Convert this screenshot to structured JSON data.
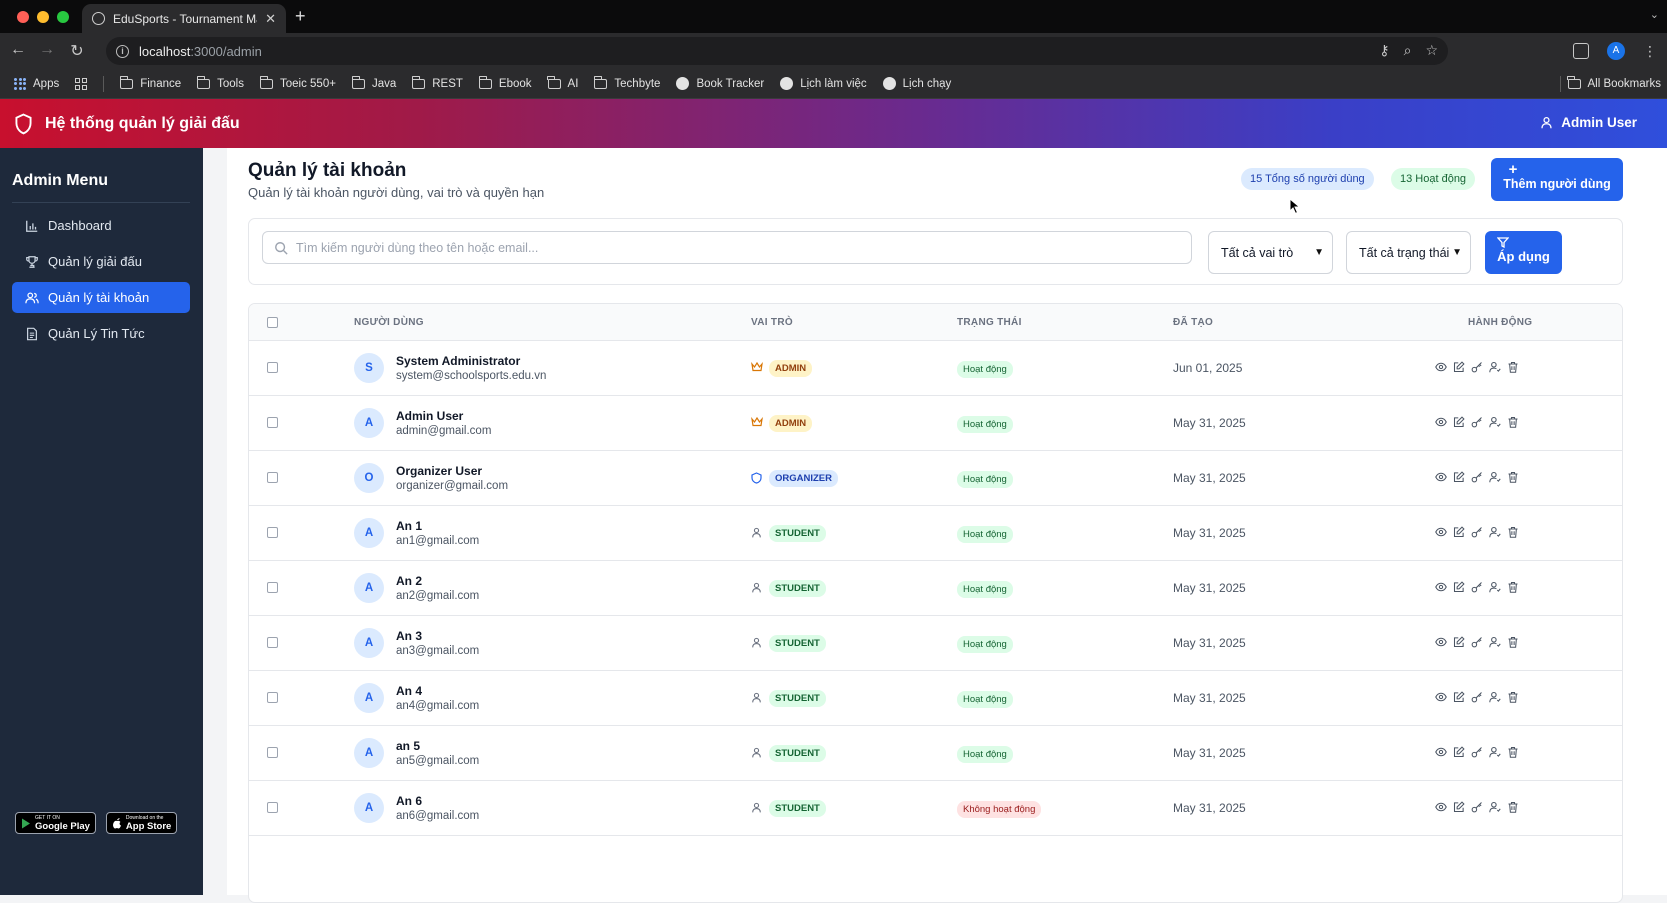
{
  "browser": {
    "tab_title": "EduSports - Tournament Man",
    "url_host": "localhost",
    "url_path": ":3000/admin",
    "bookmarks": [
      "Apps",
      "Finance",
      "Tools",
      "Toeic 550+",
      "Java",
      "REST",
      "Ebook",
      "AI",
      "Techbyte",
      "Book Tracker",
      "Lịch làm việc",
      "Lịch chạy"
    ],
    "all_bookmarks": "All Bookmarks",
    "profile_initial": "A"
  },
  "header": {
    "title": "Hệ thống quản lý giải đấu",
    "user": "Admin User"
  },
  "sidebar": {
    "title": "Admin Menu",
    "items": [
      {
        "label": "Dashboard",
        "icon": "bar-chart-icon"
      },
      {
        "label": "Quản lý giải đấu",
        "icon": "trophy-icon"
      },
      {
        "label": "Quản lý tài khoản",
        "icon": "users-icon",
        "active": true
      },
      {
        "label": "Quản Lý Tin Tức",
        "icon": "document-icon"
      }
    ],
    "stores": {
      "google_play_small": "GET IT ON",
      "google_play": "Google Play",
      "app_store_small": "Download on the",
      "app_store": "App Store"
    }
  },
  "page": {
    "title": "Quản lý tài khoản",
    "subtitle": "Quản lý tài khoản người dùng, vai trò và quyền hạn",
    "total_badge": "15 Tổng số người dùng",
    "active_badge": "13 Hoạt động",
    "add_button": "Thêm người dùng"
  },
  "filters": {
    "search_placeholder": "Tìm kiếm người dùng theo tên hoặc email...",
    "role_select": "Tất cả vai trò",
    "status_select": "Tất cả trạng thái",
    "apply_button": "Áp dụng"
  },
  "table": {
    "headers": [
      "NGƯỜI DÙNG",
      "VAI TRÒ",
      "TRẠNG THÁI",
      "ĐÃ TẠO",
      "HÀNH ĐỘNG"
    ],
    "rows": [
      {
        "initial": "S",
        "name": "System Administrator",
        "email": "system@schoolsports.edu.vn",
        "role": "ADMIN",
        "status": "Hoạt động",
        "created": "Jun 01, 2025"
      },
      {
        "initial": "A",
        "name": "Admin User",
        "email": "admin@gmail.com",
        "role": "ADMIN",
        "status": "Hoạt động",
        "created": "May 31, 2025"
      },
      {
        "initial": "O",
        "name": "Organizer User",
        "email": "organizer@gmail.com",
        "role": "ORGANIZER",
        "status": "Hoạt động",
        "created": "May 31, 2025"
      },
      {
        "initial": "A",
        "name": "An 1",
        "email": "an1@gmail.com",
        "role": "STUDENT",
        "status": "Hoạt động",
        "created": "May 31, 2025"
      },
      {
        "initial": "A",
        "name": "An 2",
        "email": "an2@gmail.com",
        "role": "STUDENT",
        "status": "Hoạt động",
        "created": "May 31, 2025"
      },
      {
        "initial": "A",
        "name": "An 3",
        "email": "an3@gmail.com",
        "role": "STUDENT",
        "status": "Hoạt động",
        "created": "May 31, 2025"
      },
      {
        "initial": "A",
        "name": "An 4",
        "email": "an4@gmail.com",
        "role": "STUDENT",
        "status": "Hoạt động",
        "created": "May 31, 2025"
      },
      {
        "initial": "A",
        "name": "an 5",
        "email": "an5@gmail.com",
        "role": "STUDENT",
        "status": "Hoạt động",
        "created": "May 31, 2025"
      },
      {
        "initial": "A",
        "name": "An 6",
        "email": "an6@gmail.com",
        "role": "STUDENT",
        "status": "Không hoạt động",
        "created": "May 31, 2025"
      }
    ]
  },
  "colors": {
    "primary": "#2563eb",
    "sidebar_bg": "#1e293b",
    "header_gradient_start": "#c8102e",
    "header_gradient_end": "#2f4fdc",
    "status_active": "#166534",
    "status_inactive": "#991b1b"
  }
}
